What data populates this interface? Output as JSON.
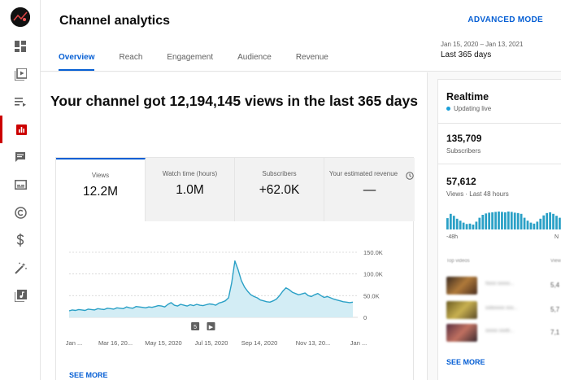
{
  "header": {
    "title": "Channel analytics",
    "advanced_mode": "ADVANCED MODE",
    "tabs": [
      {
        "label": "Overview",
        "active": true
      },
      {
        "label": "Reach",
        "active": false
      },
      {
        "label": "Engagement",
        "active": false
      },
      {
        "label": "Audience",
        "active": false
      },
      {
        "label": "Revenue",
        "active": false
      }
    ],
    "date_range": "Jan 15, 2020 – Jan 13, 2021",
    "period_label": "Last 365 days"
  },
  "sidebar": {
    "items": [
      {
        "name": "dashboard",
        "icon": "dashboard-icon"
      },
      {
        "name": "content",
        "icon": "video-library-icon"
      },
      {
        "name": "playlists",
        "icon": "playlist-icon"
      },
      {
        "name": "analytics",
        "icon": "analytics-icon",
        "active": true
      },
      {
        "name": "comments",
        "icon": "comment-icon"
      },
      {
        "name": "subtitles",
        "icon": "subtitles-icon"
      },
      {
        "name": "copyright",
        "icon": "copyright-icon"
      },
      {
        "name": "monetization",
        "icon": "dollar-icon"
      },
      {
        "name": "customization",
        "icon": "magic-wand-icon"
      },
      {
        "name": "audio-library",
        "icon": "audio-library-icon"
      }
    ]
  },
  "main": {
    "headline": "Your channel got 12,194,145 views in the last 365 days",
    "metrics": [
      {
        "label": "Views",
        "value": "12.2M",
        "active": true
      },
      {
        "label": "Watch time (hours)",
        "value": "1.0M",
        "active": false
      },
      {
        "label": "Subscribers",
        "value": "+62.0K",
        "active": false
      },
      {
        "label": "Your estimated revenue",
        "value": "—",
        "active": false
      }
    ],
    "see_more": "SEE MORE"
  },
  "chart_data": {
    "type": "area",
    "title": "",
    "xlabel": "",
    "ylabel": "",
    "x_tick_labels": [
      "Jan ...",
      "Mar 16, 20...",
      "May 15, 2020",
      "Jul 15, 2020",
      "Sep 14, 2020",
      "Nov 13, 20...",
      "Jan ..."
    ],
    "y_tick_labels": [
      "150.0K",
      "100.0K",
      "50.0K",
      "0"
    ],
    "ylim": [
      0,
      150000
    ],
    "color": "#2aa0c6",
    "fill_color": "#d3edf5",
    "markers": [
      {
        "label": "5",
        "x_index": 8
      },
      {
        "label": "▶",
        "x_index": 9
      }
    ],
    "values": [
      15000,
      17000,
      16000,
      18000,
      17000,
      16000,
      19000,
      18000,
      17000,
      20000,
      19000,
      18000,
      21000,
      20000,
      19000,
      22000,
      21000,
      20000,
      24000,
      22000,
      21000,
      25000,
      24000,
      23000,
      22000,
      24000,
      23000,
      25000,
      27000,
      26000,
      24000,
      30000,
      34000,
      28000,
      26000,
      30000,
      28000,
      26000,
      29000,
      27000,
      30000,
      28000,
      27000,
      29000,
      31000,
      30000,
      28000,
      33000,
      35000,
      38000,
      45000,
      80000,
      130000,
      110000,
      85000,
      70000,
      60000,
      52000,
      48000,
      45000,
      40000,
      38000,
      36000,
      35000,
      38000,
      42000,
      50000,
      60000,
      68000,
      64000,
      58000,
      55000,
      52000,
      54000,
      56000,
      50000,
      48000,
      52000,
      55000,
      50000,
      46000,
      48000,
      45000,
      42000,
      40000,
      38000,
      36000,
      35000,
      34000,
      35000
    ]
  },
  "realtime": {
    "title": "Realtime",
    "status": "Updating live",
    "subscribers_value": "135,709",
    "subscribers_label": "Subscribers",
    "views_value": "57,612",
    "views_label": "Views · Last 48 hours",
    "bars": [
      58,
      80,
      70,
      55,
      45,
      35,
      28,
      30,
      25,
      40,
      60,
      75,
      82,
      86,
      88,
      90,
      92,
      90,
      88,
      92,
      90,
      86,
      84,
      80,
      60,
      45,
      35,
      30,
      40,
      55,
      72,
      84,
      88,
      80,
      70,
      60
    ],
    "axis_start": "-48h",
    "axis_end": "N",
    "top_videos_header": "Top videos",
    "views_header": "View",
    "videos": [
      {
        "title": "Nxxx xxxxx...",
        "views": "5,4"
      },
      {
        "title": "xxllxxxxx xxx...",
        "views": "5,7"
      },
      {
        "title": "xxxxx xxxlll...",
        "views": "7,1"
      }
    ],
    "see_more": "SEE MORE"
  }
}
